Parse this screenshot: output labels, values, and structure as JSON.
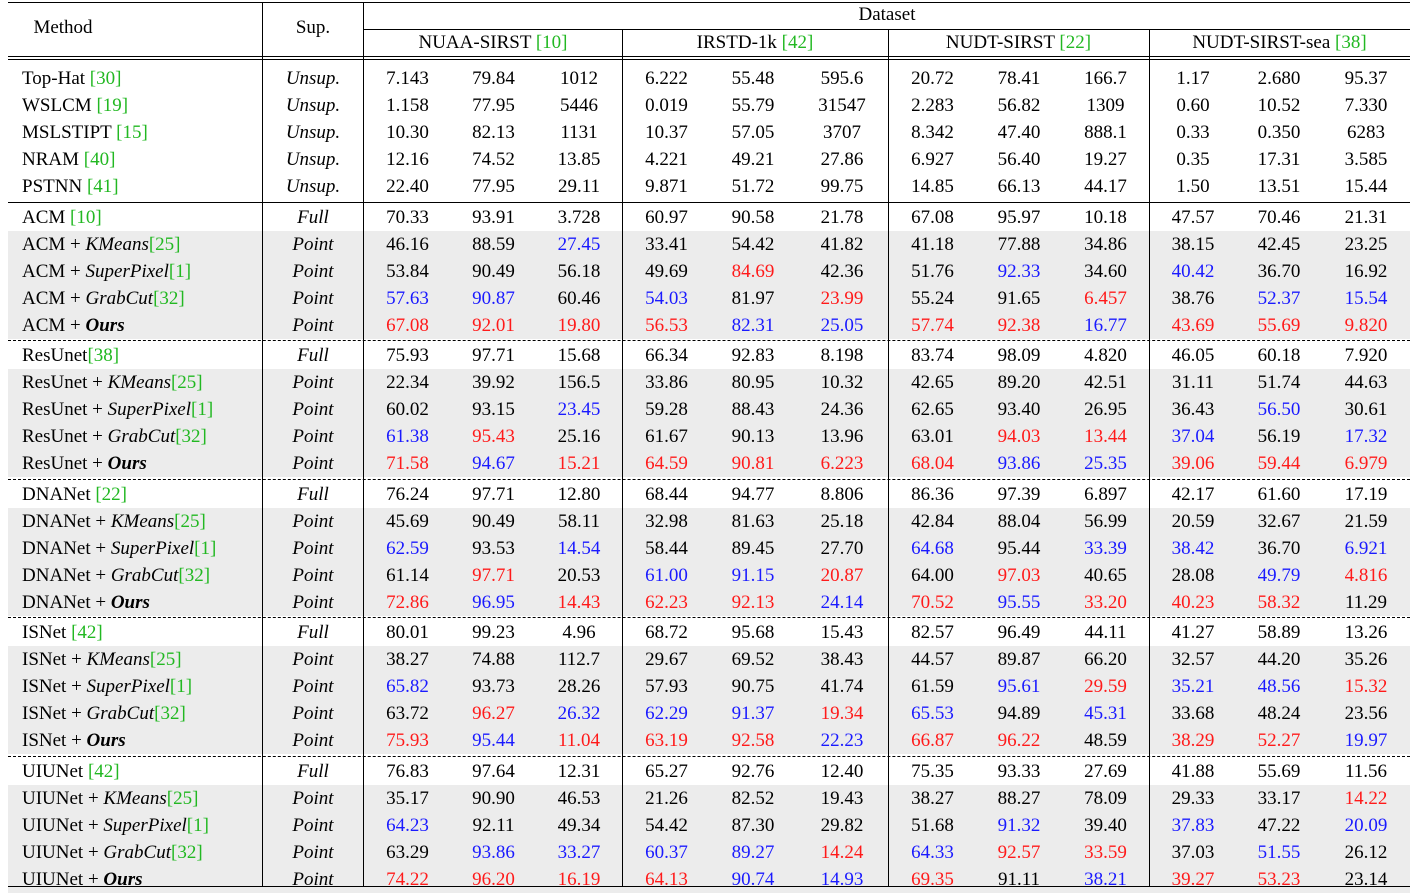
{
  "header": {
    "method": "Method",
    "sup": "Sup.",
    "dataset": "Dataset",
    "datasets": [
      {
        "name": "NUAA-SIRST",
        "ref": "10"
      },
      {
        "name": "IRSTD-1k",
        "ref": "42"
      },
      {
        "name": "NUDT-SIRST",
        "ref": "22"
      },
      {
        "name": "NUDT-SIRST-sea",
        "ref": "38"
      }
    ]
  },
  "colors": {
    "best": "#ff1a1a",
    "second": "#1a1aff",
    "ref": "#22b822",
    "shade": "#ececec"
  },
  "groups": [
    {
      "rows": [
        {
          "m": [
            "Top-Hat ",
            "30"
          ],
          "s": "Unsup.",
          "v": [
            "7.143",
            "79.84",
            "1012",
            "6.222",
            "55.48",
            "595.6",
            "20.72",
            "78.41",
            "166.7",
            "1.17",
            "2.680",
            "95.37"
          ]
        },
        {
          "m": [
            "WSLCM ",
            "19"
          ],
          "s": "Unsup.",
          "v": [
            "1.158",
            "77.95",
            "5446",
            "0.019",
            "55.79",
            "31547",
            "2.283",
            "56.82",
            "1309",
            "0.60",
            "10.52",
            "7.330"
          ]
        },
        {
          "m": [
            "MSLSTIPT ",
            "15"
          ],
          "s": "Unsup.",
          "v": [
            "10.30",
            "82.13",
            "1131",
            "10.37",
            "57.05",
            "3707",
            "8.342",
            "47.40",
            "888.1",
            "0.33",
            "0.350",
            "6283"
          ]
        },
        {
          "m": [
            "NRAM ",
            "40"
          ],
          "s": "Unsup.",
          "v": [
            "12.16",
            "74.52",
            "13.85",
            "4.221",
            "49.21",
            "27.86",
            "6.927",
            "56.40",
            "19.27",
            "0.35",
            "17.31",
            "3.585"
          ]
        },
        {
          "m": [
            "PSTNN ",
            "41"
          ],
          "s": "Unsup.",
          "v": [
            "22.40",
            "77.95",
            "29.11",
            "9.871",
            "51.72",
            "99.75",
            "14.85",
            "66.13",
            "44.17",
            "1.50",
            "13.51",
            "15.44"
          ]
        }
      ]
    },
    {
      "rows": [
        {
          "m": [
            "ACM ",
            "10"
          ],
          "s": "Full",
          "v": [
            "70.33",
            "93.91",
            "3.728",
            "60.97",
            "90.58",
            "21.78",
            "67.08",
            "95.97",
            "10.18",
            "47.57",
            "70.46",
            "21.31"
          ]
        },
        {
          "m": [
            "ACM + ",
            "KMeans",
            "25"
          ],
          "s": "Point",
          "gray": true,
          "v": [
            "46.16",
            "88.59",
            "27.45",
            "33.41",
            "54.42",
            "41.82",
            "41.18",
            "77.88",
            "34.86",
            "38.15",
            "42.45",
            "23.25"
          ],
          "c": [
            "",
            "",
            "b",
            "",
            "",
            "",
            "",
            "",
            "",
            "",
            "",
            ""
          ]
        },
        {
          "m": [
            "ACM + ",
            "SuperPixel",
            "1"
          ],
          "s": "Point",
          "gray": true,
          "v": [
            "53.84",
            "90.49",
            "56.18",
            "49.69",
            "84.69",
            "42.36",
            "51.76",
            "92.33",
            "34.60",
            "40.42",
            "36.70",
            "16.92"
          ],
          "c": [
            "",
            "",
            "",
            "",
            "r",
            "",
            "",
            "b",
            "",
            "b",
            "",
            ""
          ]
        },
        {
          "m": [
            "ACM + ",
            "GrabCut",
            "32"
          ],
          "s": "Point",
          "gray": true,
          "v": [
            "57.63",
            "90.87",
            "60.46",
            "54.03",
            "81.97",
            "23.99",
            "55.24",
            "91.65",
            "6.457",
            "38.76",
            "52.37",
            "15.54"
          ],
          "c": [
            "b",
            "b",
            "",
            "b",
            "",
            "r",
            "",
            "",
            "r",
            "",
            "b",
            "b"
          ]
        },
        {
          "m": [
            "ACM + ",
            "Ours",
            ""
          ],
          "s": "Point",
          "gray": true,
          "ours": true,
          "v": [
            "67.08",
            "92.01",
            "19.80",
            "56.53",
            "82.31",
            "25.05",
            "57.74",
            "92.38",
            "16.77",
            "43.69",
            "55.69",
            "9.820"
          ],
          "c": [
            "r",
            "r",
            "r",
            "r",
            "b",
            "b",
            "r",
            "r",
            "b",
            "r",
            "r",
            "r"
          ]
        }
      ]
    },
    {
      "rows": [
        {
          "m": [
            "ResUnet",
            "38"
          ],
          "s": "Full",
          "v": [
            "75.93",
            "97.71",
            "15.68",
            "66.34",
            "92.83",
            "8.198",
            "83.74",
            "98.09",
            "4.820",
            "46.05",
            "60.18",
            "7.920"
          ]
        },
        {
          "m": [
            "ResUnet + ",
            "KMeans",
            "25"
          ],
          "s": "Point",
          "gray": true,
          "v": [
            "22.34",
            "39.92",
            "156.5",
            "33.86",
            "80.95",
            "10.32",
            "42.65",
            "89.20",
            "42.51",
            "31.11",
            "51.74",
            "44.63"
          ]
        },
        {
          "m": [
            "ResUnet + ",
            "SuperPixel",
            "1"
          ],
          "s": "Point",
          "gray": true,
          "v": [
            "60.02",
            "93.15",
            "23.45",
            "59.28",
            "88.43",
            "24.36",
            "62.65",
            "93.40",
            "26.95",
            "36.43",
            "56.50",
            "30.61"
          ],
          "c": [
            "",
            "",
            "b",
            "",
            "",
            "",
            "",
            "",
            "",
            "",
            "b",
            ""
          ]
        },
        {
          "m": [
            "ResUnet + ",
            "GrabCut",
            "32"
          ],
          "s": "Point",
          "gray": true,
          "v": [
            "61.38",
            "95.43",
            "25.16",
            "61.67",
            "90.13",
            "13.96",
            "63.01",
            "94.03",
            "13.44",
            "37.04",
            "56.19",
            "17.32"
          ],
          "c": [
            "b",
            "r",
            "",
            "",
            "",
            "",
            "",
            "r",
            "r",
            "b",
            "",
            "b"
          ]
        },
        {
          "m": [
            "ResUnet + ",
            "Ours",
            ""
          ],
          "s": "Point",
          "gray": true,
          "ours": true,
          "v": [
            "71.58",
            "94.67",
            "15.21",
            "64.59",
            "90.81",
            "6.223",
            "68.04",
            "93.86",
            "25.35",
            "39.06",
            "59.44",
            "6.979"
          ],
          "c": [
            "r",
            "b",
            "r",
            "r",
            "r",
            "r",
            "r",
            "b",
            "b",
            "r",
            "r",
            "r"
          ]
        }
      ]
    },
    {
      "rows": [
        {
          "m": [
            "DNANet ",
            "22"
          ],
          "s": "Full",
          "v": [
            "76.24",
            "97.71",
            "12.80",
            "68.44",
            "94.77",
            "8.806",
            "86.36",
            "97.39",
            "6.897",
            "42.17",
            "61.60",
            "17.19"
          ]
        },
        {
          "m": [
            "DNANet + ",
            "KMeans",
            "25"
          ],
          "s": "Point",
          "gray": true,
          "v": [
            "45.69",
            "90.49",
            "58.11",
            "32.98",
            "81.63",
            "25.18",
            "42.84",
            "88.04",
            "56.99",
            "20.59",
            "32.67",
            "21.59"
          ]
        },
        {
          "m": [
            "DNANet + ",
            "SuperPixel",
            "1"
          ],
          "s": "Point",
          "gray": true,
          "v": [
            "62.59",
            "93.53",
            "14.54",
            "58.44",
            "89.45",
            "27.70",
            "64.68",
            "95.44",
            "33.39",
            "38.42",
            "36.70",
            "6.921"
          ],
          "c": [
            "b",
            "",
            "b",
            "",
            "",
            "",
            "b",
            "",
            "b",
            "b",
            "",
            "b"
          ]
        },
        {
          "m": [
            "DNANet + ",
            "GrabCut",
            "32"
          ],
          "s": "Point",
          "gray": true,
          "v": [
            "61.14",
            "97.71",
            "20.53",
            "61.00",
            "91.15",
            "20.87",
            "64.00",
            "97.03",
            "40.65",
            "28.08",
            "49.79",
            "4.816"
          ],
          "c": [
            "",
            "r",
            "",
            "b",
            "b",
            "r",
            "",
            "r",
            "",
            "",
            "b",
            "r"
          ]
        },
        {
          "m": [
            "DNANet + ",
            "Ours",
            ""
          ],
          "s": "Point",
          "gray": true,
          "ours": true,
          "v": [
            "72.86",
            "96.95",
            "14.43",
            "62.23",
            "92.13",
            "24.14",
            "70.52",
            "95.55",
            "33.20",
            "40.23",
            "58.32",
            "11.29"
          ],
          "c": [
            "r",
            "b",
            "r",
            "r",
            "r",
            "b",
            "r",
            "b",
            "r",
            "r",
            "r",
            ""
          ]
        }
      ]
    },
    {
      "rows": [
        {
          "m": [
            "ISNet ",
            "42"
          ],
          "s": "Full",
          "v": [
            "80.01",
            "99.23",
            "4.96",
            "68.72",
            "95.68",
            "15.43",
            "82.57",
            "96.49",
            "44.11",
            "41.27",
            "58.89",
            "13.26"
          ]
        },
        {
          "m": [
            "ISNet + ",
            "KMeans",
            "25"
          ],
          "s": "Point",
          "gray": true,
          "v": [
            "38.27",
            "74.88",
            "112.7",
            "29.67",
            "69.52",
            "38.43",
            "44.57",
            "89.87",
            "66.20",
            "32.57",
            "44.20",
            "35.26"
          ]
        },
        {
          "m": [
            "ISNet + ",
            "SuperPixel",
            "1"
          ],
          "s": "Point",
          "gray": true,
          "v": [
            "65.82",
            "93.73",
            "28.26",
            "57.93",
            "90.75",
            "41.74",
            "61.59",
            "95.61",
            "29.59",
            "35.21",
            "48.56",
            "15.32"
          ],
          "c": [
            "b",
            "",
            "",
            "",
            "",
            "",
            "",
            "b",
            "r",
            "b",
            "b",
            "r"
          ]
        },
        {
          "m": [
            "ISNet + ",
            "GrabCut",
            "32"
          ],
          "s": "Point",
          "gray": true,
          "v": [
            "63.72",
            "96.27",
            "26.32",
            "62.29",
            "91.37",
            "19.34",
            "65.53",
            "94.89",
            "45.31",
            "33.68",
            "48.24",
            "23.56"
          ],
          "c": [
            "",
            "r",
            "b",
            "b",
            "b",
            "r",
            "b",
            "",
            "b",
            "",
            "",
            ""
          ]
        },
        {
          "m": [
            "ISNet + ",
            "Ours",
            ""
          ],
          "s": "Point",
          "gray": true,
          "ours": true,
          "v": [
            "75.93",
            "95.44",
            "11.04",
            "63.19",
            "92.58",
            "22.23",
            "66.87",
            "96.22",
            "48.59",
            "38.29",
            "52.27",
            "19.97"
          ],
          "c": [
            "r",
            "b",
            "r",
            "r",
            "r",
            "b",
            "r",
            "r",
            "",
            "r",
            "r",
            "b"
          ]
        }
      ]
    },
    {
      "rows": [
        {
          "m": [
            "UIUNet ",
            "42"
          ],
          "s": "Full",
          "v": [
            "76.83",
            "97.64",
            "12.31",
            "65.27",
            "92.76",
            "12.40",
            "75.35",
            "93.33",
            "27.69",
            "41.88",
            "55.69",
            "11.56"
          ]
        },
        {
          "m": [
            "UIUNet + ",
            "KMeans",
            "25"
          ],
          "s": "Point",
          "gray": true,
          "v": [
            "35.17",
            "90.90",
            "46.53",
            "21.26",
            "82.52",
            "19.43",
            "38.27",
            "88.27",
            "78.09",
            "29.33",
            "33.17",
            "14.22"
          ],
          "c": [
            "",
            "",
            "",
            "",
            "",
            "",
            "",
            "",
            "",
            "",
            "",
            "r"
          ]
        },
        {
          "m": [
            "UIUNet + ",
            "SuperPixel",
            "1"
          ],
          "s": "Point",
          "gray": true,
          "v": [
            "64.23",
            "92.11",
            "49.34",
            "54.42",
            "87.30",
            "29.82",
            "51.68",
            "91.32",
            "39.40",
            "37.83",
            "47.22",
            "20.09"
          ],
          "c": [
            "b",
            "",
            "",
            "",
            "",
            "",
            "",
            "b",
            "",
            "b",
            "",
            "b"
          ]
        },
        {
          "m": [
            "UIUNet + ",
            "GrabCut",
            "32"
          ],
          "s": "Point",
          "gray": true,
          "v": [
            "63.29",
            "93.86",
            "33.27",
            "60.37",
            "89.27",
            "14.24",
            "64.33",
            "92.57",
            "33.59",
            "37.03",
            "51.55",
            "26.12"
          ],
          "c": [
            "",
            "b",
            "b",
            "b",
            "b",
            "r",
            "b",
            "r",
            "r",
            "",
            "b",
            ""
          ]
        },
        {
          "m": [
            "UIUNet + ",
            "Ours",
            ""
          ],
          "s": "Point",
          "gray": true,
          "ours": true,
          "v": [
            "74.22",
            "96.20",
            "16.19",
            "64.13",
            "90.74",
            "14.93",
            "69.35",
            "91.11",
            "38.21",
            "39.27",
            "53.23",
            "23.14"
          ],
          "c": [
            "r",
            "r",
            "r",
            "r",
            "b",
            "b",
            "r",
            "",
            "b",
            "r",
            "r",
            ""
          ]
        }
      ]
    }
  ]
}
